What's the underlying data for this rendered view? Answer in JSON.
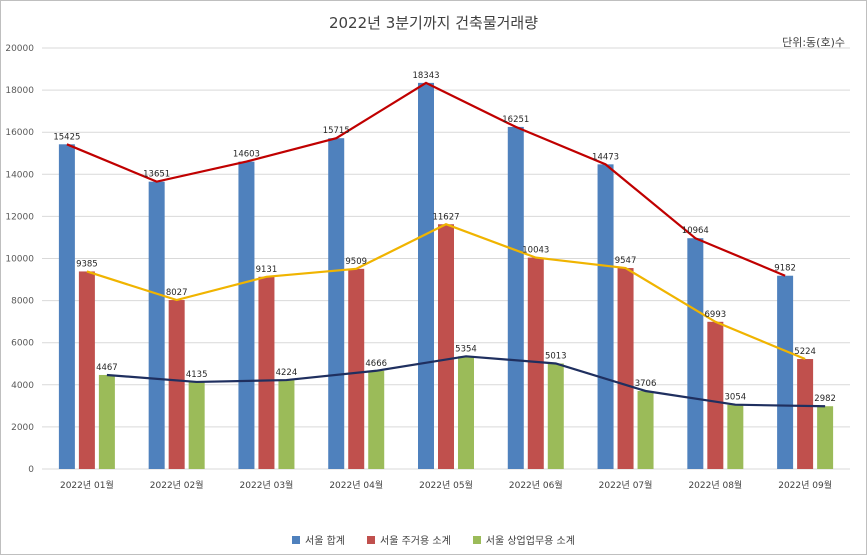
{
  "chart_data": {
    "type": "bar",
    "title": "2022년 3분기까지 건축물거래량",
    "unit_label": "단위:동(호)수",
    "categories": [
      "2022년 01월",
      "2022년 02월",
      "2022년 03월",
      "2022년 04월",
      "2022년 05월",
      "2022년 06월",
      "2022년 07월",
      "2022년 08월",
      "2022년 09월"
    ],
    "ylim": [
      0,
      20000
    ],
    "yticks": [
      0,
      2000,
      4000,
      6000,
      8000,
      10000,
      12000,
      14000,
      16000,
      18000,
      20000
    ],
    "grid": true,
    "legend_position": "bottom",
    "series": [
      {
        "name": "서울 합계",
        "color": "#4F81BD",
        "values": [
          15425,
          13651,
          14603,
          15715,
          18343,
          16251,
          14473,
          10964,
          9182
        ]
      },
      {
        "name": "서울 주거용 소계",
        "color": "#C0504D",
        "values": [
          9385,
          8027,
          9131,
          9509,
          11627,
          10043,
          9547,
          6993,
          5224
        ]
      },
      {
        "name": "서울 상업업무용 소계",
        "color": "#9BBB59",
        "values": [
          4467,
          4135,
          4224,
          4666,
          5354,
          5013,
          3706,
          3054,
          2982
        ]
      }
    ],
    "trend_lines": [
      {
        "of_series": 0,
        "color": "#C00000"
      },
      {
        "of_series": 1,
        "color": "#F0B400"
      },
      {
        "of_series": 2,
        "color": "#1F2F5F"
      }
    ]
  }
}
